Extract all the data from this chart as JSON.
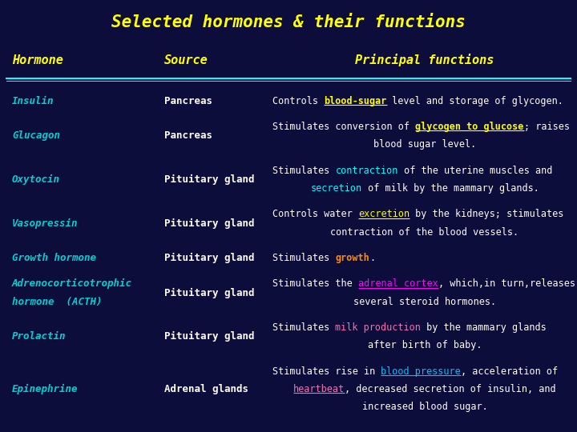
{
  "title": "Selected hormones & their functions",
  "title_color": "#FFFF00",
  "bg_color": "#0d0d3b",
  "header_color": "#FFFF00",
  "headers": [
    "Hormone",
    "Source",
    "Principal functions"
  ],
  "hormone_color": "#00CED1",
  "source_color": "#FFFFFF",
  "func_color": "#FFFFFF",
  "rows": [
    {
      "hormone": "Insulin",
      "source": "Pancreas",
      "func_lines": [
        [
          {
            "text": "Controls ",
            "color": "#FFFFFF",
            "bold": false,
            "underline": false
          },
          {
            "text": "blood-sugar",
            "color": "#FFFF00",
            "bold": true,
            "underline": true
          },
          {
            "text": " level and storage of glycogen.",
            "color": "#FFFFFF",
            "bold": false,
            "underline": false
          }
        ]
      ]
    },
    {
      "hormone": "Glucagon",
      "source": "Pancreas",
      "func_lines": [
        [
          {
            "text": "Stimulates conversion of ",
            "color": "#FFFFFF",
            "bold": false,
            "underline": false
          },
          {
            "text": "glycogen to glucose",
            "color": "#FFFF00",
            "bold": true,
            "underline": true
          },
          {
            "text": "; raises",
            "color": "#FFFFFF",
            "bold": false,
            "underline": false
          }
        ],
        [
          {
            "text": "blood sugar level.",
            "color": "#FFFFFF",
            "bold": false,
            "underline": false
          }
        ]
      ]
    },
    {
      "hormone": "Oxytocin",
      "source": "Pituitary gland",
      "func_lines": [
        [
          {
            "text": "Stimulates ",
            "color": "#FFFFFF",
            "bold": false,
            "underline": false
          },
          {
            "text": "contraction",
            "color": "#00FFFF",
            "bold": false,
            "underline": false
          },
          {
            "text": " of the uterine muscles and",
            "color": "#FFFFFF",
            "bold": false,
            "underline": false
          }
        ],
        [
          {
            "text": "secretion",
            "color": "#00FFFF",
            "bold": false,
            "underline": false
          },
          {
            "text": " of milk by the mammary glands.",
            "color": "#FFFFFF",
            "bold": false,
            "underline": false
          }
        ]
      ]
    },
    {
      "hormone": "Vasopressin",
      "source": "Pituitary gland",
      "func_lines": [
        [
          {
            "text": "Controls water ",
            "color": "#FFFFFF",
            "bold": false,
            "underline": false
          },
          {
            "text": "excretion",
            "color": "#FFFF00",
            "bold": false,
            "underline": true
          },
          {
            "text": " by the kidneys; stimulates",
            "color": "#FFFFFF",
            "bold": false,
            "underline": false
          }
        ],
        [
          {
            "text": "contraction of the blood vessels.",
            "color": "#FFFFFF",
            "bold": false,
            "underline": false
          }
        ]
      ]
    },
    {
      "hormone": "Growth hormone",
      "source": "Pituitary gland",
      "func_lines": [
        [
          {
            "text": "Stimulates ",
            "color": "#FFFFFF",
            "bold": false,
            "underline": false
          },
          {
            "text": "growth",
            "color": "#FF8C00",
            "bold": true,
            "underline": false
          },
          {
            "text": ".",
            "color": "#FFFFFF",
            "bold": false,
            "underline": false
          }
        ]
      ]
    },
    {
      "hormone": "Adrenocorticotrophic\nhormone  (ACTH)",
      "source": "Pituitary gland",
      "func_lines": [
        [
          {
            "text": "Stimulates the ",
            "color": "#FFFFFF",
            "bold": false,
            "underline": false
          },
          {
            "text": "adrenal cortex",
            "color": "#FF00FF",
            "bold": false,
            "underline": true
          },
          {
            "text": ", which,in turn,releases",
            "color": "#FFFFFF",
            "bold": false,
            "underline": false
          }
        ],
        [
          {
            "text": "several steroid hormones.",
            "color": "#FFFFFF",
            "bold": false,
            "underline": false
          }
        ]
      ]
    },
    {
      "hormone": "Prolactin",
      "source": "Pituitary gland",
      "func_lines": [
        [
          {
            "text": "Stimulates ",
            "color": "#FFFFFF",
            "bold": false,
            "underline": false
          },
          {
            "text": "milk production",
            "color": "#FF69B4",
            "bold": false,
            "underline": false
          },
          {
            "text": " by the mammary glands",
            "color": "#FFFFFF",
            "bold": false,
            "underline": false
          }
        ],
        [
          {
            "text": "after birth of baby.",
            "color": "#FFFFFF",
            "bold": false,
            "underline": false
          }
        ]
      ]
    },
    {
      "hormone": "Epinephrine",
      "source": "Adrenal glands",
      "func_lines": [
        [
          {
            "text": "Stimulates rise in ",
            "color": "#FFFFFF",
            "bold": false,
            "underline": false
          },
          {
            "text": "blood pressure",
            "color": "#00BFFF",
            "bold": false,
            "underline": true
          },
          {
            "text": ", acceleration of",
            "color": "#FFFFFF",
            "bold": false,
            "underline": false
          }
        ],
        [
          {
            "text": "heartbeat",
            "color": "#FF69B4",
            "bold": false,
            "underline": true
          },
          {
            "text": ", decreased secretion of insulin, and",
            "color": "#FFFFFF",
            "bold": false,
            "underline": false
          }
        ],
        [
          {
            "text": "increased blood sugar.",
            "color": "#FFFFFF",
            "bold": false,
            "underline": false
          }
        ]
      ]
    }
  ]
}
